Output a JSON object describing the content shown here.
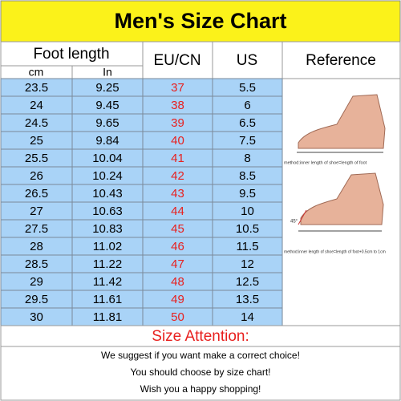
{
  "header": {
    "title": "Men's Size Chart"
  },
  "table": {
    "columns": {
      "foot_length": "Foot length",
      "cm": "cm",
      "in": "In",
      "eu": "EU/CN",
      "us": "US",
      "reference": "Reference"
    },
    "rows": [
      [
        "23.5",
        "9.25",
        "37",
        "5.5"
      ],
      [
        "24",
        "9.45",
        "38",
        "6"
      ],
      [
        "24.5",
        "9.65",
        "39",
        "6.5"
      ],
      [
        "25",
        "9.84",
        "40",
        "7.5"
      ],
      [
        "25.5",
        "10.04",
        "41",
        "8"
      ],
      [
        "26",
        "10.24",
        "42",
        "8.5"
      ],
      [
        "26.5",
        "10.43",
        "43",
        "9.5"
      ],
      [
        "27",
        "10.63",
        "44",
        "10"
      ],
      [
        "27.5",
        "10.83",
        "45",
        "10.5"
      ],
      [
        "28",
        "11.02",
        "46",
        "11.5"
      ],
      [
        "28.5",
        "11.22",
        "47",
        "12"
      ],
      [
        "29",
        "11.42",
        "48",
        "12.5"
      ],
      [
        "29.5",
        "11.61",
        "49",
        "13.5"
      ],
      [
        "30",
        "11.81",
        "50",
        "14"
      ]
    ]
  },
  "reference": {
    "captions": [
      "method:inner length of shoe=length of foot",
      "method:inner length of shoe=length of foot+0.5cm to 1cm"
    ],
    "angle": "45°"
  },
  "notice": {
    "title": "Size Attention:",
    "lines": [
      "We suggest if you want make a correct choice!",
      "You should choose by size chart!",
      "Wish you a happy shopping!"
    ]
  }
}
